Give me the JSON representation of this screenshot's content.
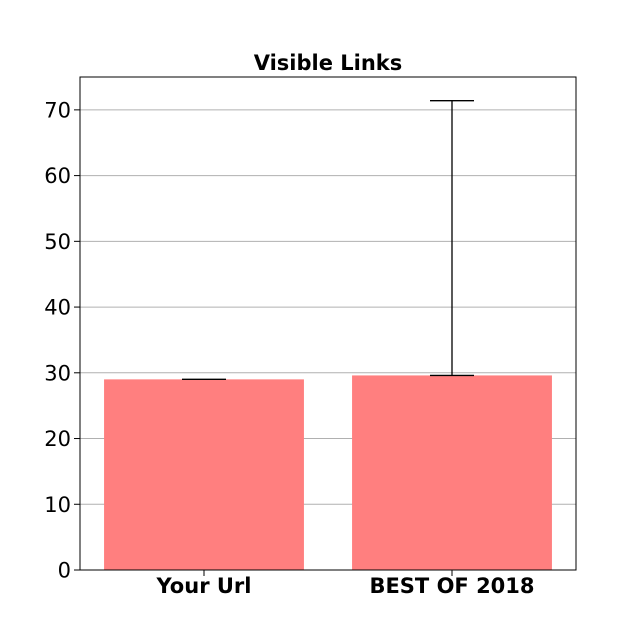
{
  "chart_data": {
    "type": "bar",
    "title": "Visible Links",
    "xlabel": "",
    "ylabel": "",
    "categories": [
      "Your Url",
      "BEST OF 2018"
    ],
    "values": [
      29,
      29.6
    ],
    "error_upper": [
      29,
      71.4
    ],
    "error_lower": [
      29,
      29.6
    ],
    "ylim": [
      0,
      75
    ],
    "yticks": [
      0,
      10,
      20,
      30,
      40,
      50,
      60,
      70
    ],
    "grid": "y",
    "legend": "none"
  },
  "colors": {
    "bar": "#ff7f7f",
    "grid": "#b0b0b0",
    "axis": "#000000",
    "errorbar": "#000000",
    "background": "#ffffff"
  }
}
